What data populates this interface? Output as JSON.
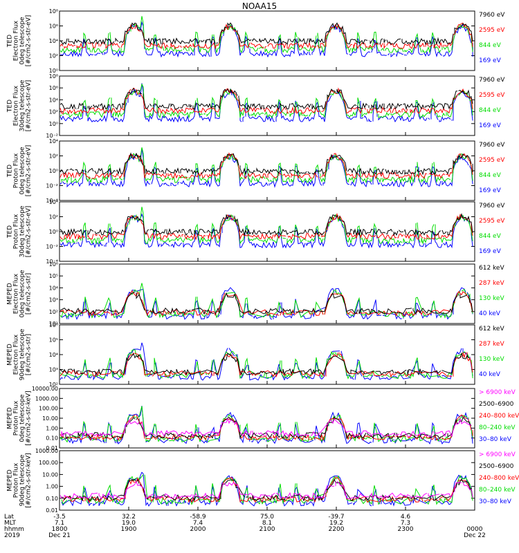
{
  "title": "NOAA15",
  "colors": {
    "black": "#000000",
    "red": "#ff0000",
    "green": "#00dd00",
    "blue": "#0000ff",
    "magenta": "#ff00ff"
  },
  "footer": {
    "row_labels": [
      "Lat",
      "MLT",
      "hhmm",
      "2019"
    ],
    "ticks": [
      {
        "lat": "-3.5",
        "mlt": "7.1",
        "hhmm": "1800",
        "date": "Dec 21"
      },
      {
        "lat": "32.2",
        "mlt": "19.0",
        "hhmm": "1900",
        "date": ""
      },
      {
        "lat": "-58.9",
        "mlt": "7.4",
        "hhmm": "2000",
        "date": ""
      },
      {
        "lat": "75.0",
        "mlt": "8.1",
        "hhmm": "2100",
        "date": ""
      },
      {
        "lat": "-39.7",
        "mlt": "19.2",
        "hhmm": "2200",
        "date": ""
      },
      {
        "lat": "4.6",
        "mlt": "7.3",
        "hhmm": "2300",
        "date": ""
      },
      {
        "lat": "",
        "mlt": "",
        "hhmm": "0000",
        "date": "Dec 22"
      }
    ]
  },
  "chart_data": [
    {
      "type": "line",
      "ylabel": [
        "TED",
        "Electron Flux",
        "0deg telescope",
        "[#/cm2-s-str-eV]"
      ],
      "yscale": "log",
      "yticks": [
        "10⁰",
        "10²",
        "10⁴",
        "10⁶",
        "10⁸"
      ],
      "ylim": [
        1,
        100000000
      ],
      "legend": [
        {
          "name": "7960 eV",
          "color": "black"
        },
        {
          "name": "2595 eV",
          "color": "red"
        },
        {
          "name": "844 eV",
          "color": "green"
        },
        {
          "name": "169 eV",
          "color": "blue"
        }
      ]
    },
    {
      "type": "line",
      "ylabel": [
        "TED",
        "Electron Flux",
        "30deg telescope",
        "[#/cm2-s-str-eV]"
      ],
      "yscale": "log",
      "yticks": [
        "10⁻²",
        "10⁰",
        "10²",
        "10⁴",
        "10⁶",
        "10⁸"
      ],
      "ylim": [
        0.01,
        100000000
      ],
      "legend": [
        {
          "name": "7960 eV",
          "color": "black"
        },
        {
          "name": "2595 eV",
          "color": "red"
        },
        {
          "name": "844 eV",
          "color": "green"
        },
        {
          "name": "169 eV",
          "color": "blue"
        }
      ]
    },
    {
      "type": "line",
      "ylabel": [
        "TED",
        "Proton Flux",
        "0deg telescope",
        "[#/cm2-s-str-eV]"
      ],
      "yscale": "log",
      "yticks": [
        "10⁻⁴",
        "10⁻²",
        "10⁰",
        "10²",
        "10⁴"
      ],
      "ylim": [
        0.0001,
        10000
      ],
      "legend": [
        {
          "name": "7960 eV",
          "color": "black"
        },
        {
          "name": "2595 eV",
          "color": "red"
        },
        {
          "name": "844 eV",
          "color": "green"
        },
        {
          "name": "169 eV",
          "color": "blue"
        }
      ]
    },
    {
      "type": "line",
      "ylabel": [
        "TED",
        "Proton Flux",
        "30deg telescope",
        "[#/cm2-s-str-eV]"
      ],
      "yscale": "log",
      "yticks": [
        "10⁻⁴",
        "10⁻²",
        "10⁰",
        "10²",
        "10⁴"
      ],
      "ylim": [
        0.0001,
        10000
      ],
      "legend": [
        {
          "name": "7960 eV",
          "color": "black"
        },
        {
          "name": "2595 eV",
          "color": "red"
        },
        {
          "name": "844 eV",
          "color": "green"
        },
        {
          "name": "169 eV",
          "color": "blue"
        }
      ]
    },
    {
      "type": "line",
      "ylabel": [
        "MEPED",
        "Electron Flux",
        "0deg telescope",
        "[#/cm2-s-str]"
      ],
      "yscale": "log",
      "yticks": [
        "10¹",
        "10²",
        "10³",
        "10⁴",
        "10⁵",
        "10⁶"
      ],
      "ylim": [
        10,
        1000000
      ],
      "legend": [
        {
          "name": "612 keV",
          "color": "black"
        },
        {
          "name": "287 keV",
          "color": "red"
        },
        {
          "name": "130 keV",
          "color": "green"
        },
        {
          "name": "40 keV",
          "color": "blue"
        }
      ]
    },
    {
      "type": "line",
      "ylabel": [
        "MEPED",
        "Electron Flux",
        "90deg telescope",
        "[#/cm2-s-str]"
      ],
      "yscale": "log",
      "yticks": [
        "10²",
        "10³",
        "10⁴",
        "10⁵",
        "10⁶"
      ],
      "ylim": [
        100,
        1000000
      ],
      "legend": [
        {
          "name": "612 keV",
          "color": "black"
        },
        {
          "name": "287 keV",
          "color": "red"
        },
        {
          "name": "130 keV",
          "color": "green"
        },
        {
          "name": "40 keV",
          "color": "blue"
        }
      ]
    },
    {
      "type": "line",
      "ylabel": [
        "MEPED",
        "Proton Flux",
        "0deg telescope",
        "[#/cm2-s-str-keV]"
      ],
      "yscale": "log",
      "yticks": [
        "0.01",
        "0.10",
        "1.00",
        "10.00",
        "100.00",
        "1000.00",
        "10000.00"
      ],
      "ylim": [
        0.01,
        10000
      ],
      "legend": [
        {
          "name": "> 6900 keV",
          "color": "magenta"
        },
        {
          "name": "2500–6900",
          "color": "black"
        },
        {
          "name": "240–800 keV",
          "color": "red"
        },
        {
          "name": "80–240 keV",
          "color": "green"
        },
        {
          "name": "30–80 keV",
          "color": "blue"
        }
      ]
    },
    {
      "type": "line",
      "ylabel": [
        "MEPED",
        "Proton Flux",
        "90deg telescope",
        "[#/cm2-s-str-keV]"
      ],
      "yscale": "log",
      "yticks": [
        "0.01",
        "0.10",
        "1.00",
        "10.00",
        "100.00",
        "1000.00"
      ],
      "ylim": [
        0.01,
        1000
      ],
      "legend": [
        {
          "name": "> 6900 keV",
          "color": "magenta"
        },
        {
          "name": "2500–6900",
          "color": "black"
        },
        {
          "name": "240–800 keV",
          "color": "red"
        },
        {
          "name": "80–240 keV",
          "color": "green"
        },
        {
          "name": "30–80 keV",
          "color": "blue"
        }
      ]
    }
  ]
}
